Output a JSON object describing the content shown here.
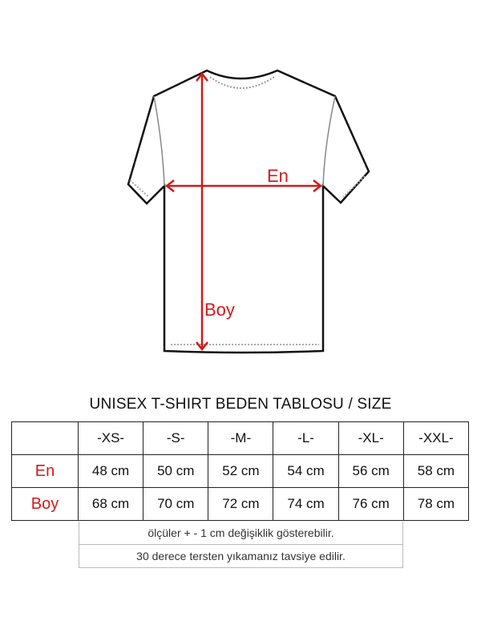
{
  "diagram": {
    "width_label": "En",
    "length_label": "Boy",
    "accent_color": "#d21a1a"
  },
  "table": {
    "title": "UNISEX T-SHIRT BEDEN TABLOSU / SIZE",
    "sizes": [
      "-XS-",
      "-S-",
      "-M-",
      "-L-",
      "-XL-",
      "-XXL-"
    ],
    "rows": [
      {
        "label": "En",
        "values": [
          "48 cm",
          "50 cm",
          "52 cm",
          "54 cm",
          "56 cm",
          "58 cm"
        ]
      },
      {
        "label": "Boy",
        "values": [
          "68 cm",
          "70 cm",
          "72 cm",
          "74 cm",
          "76 cm",
          "78 cm"
        ]
      }
    ],
    "notes": [
      "ölçüler  + - 1 cm  değişiklik gösterebilir.",
      "30 derece tersten yıkamanız tavsiye edilir."
    ]
  }
}
